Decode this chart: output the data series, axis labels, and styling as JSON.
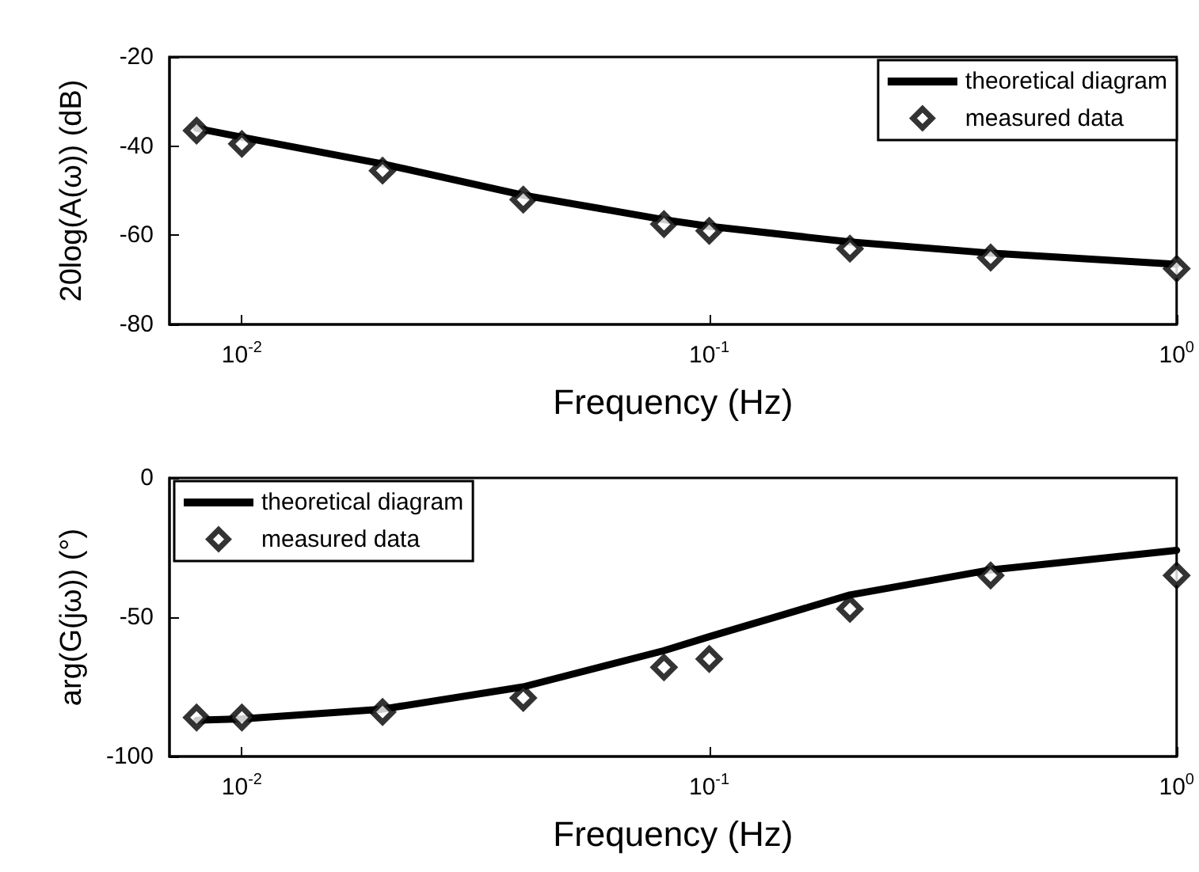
{
  "chart_data": [
    {
      "type": "line",
      "xlabel": "Frequency (Hz)",
      "ylabel": "20log(A(ω)) (dB)",
      "x": [
        0.008,
        0.01,
        0.02,
        0.04,
        0.08,
        0.1,
        0.2,
        0.4,
        1
      ],
      "xlim": [
        0.007,
        1
      ],
      "xticks": [
        {
          "value": 0.01,
          "label": "10$^{-2}$"
        },
        {
          "value": 0.1,
          "label": "10$^{-1}$"
        },
        {
          "value": 1,
          "label": "10$^{0}$"
        }
      ],
      "ylim": [
        -80,
        -20
      ],
      "yticks": [
        -80,
        -60,
        -40,
        -20
      ],
      "log": "x",
      "grid": false,
      "legend": "top right",
      "series": [
        {
          "name": "measured data",
          "type": "scatter",
          "marker": "diamond",
          "color": "#000000",
          "values": [
            -36.5,
            -39.5,
            -45.5,
            -52,
            -57.5,
            -59,
            -63,
            -65,
            -67.5
          ]
        },
        {
          "name": "theoretical diagram",
          "type": "line",
          "marker": "none",
          "color": "#000000",
          "values": [
            -36,
            -38,
            -44,
            -51,
            -56.5,
            -58,
            -61.5,
            -64,
            -66.5
          ]
        }
      ]
    },
    {
      "type": "line",
      "xlabel": "Frequency (Hz)",
      "ylabel": "arg(G(jω)) (°)",
      "x": [
        0.008,
        0.01,
        0.02,
        0.04,
        0.08,
        0.1,
        0.2,
        0.4,
        1
      ],
      "xlim": [
        0.007,
        1
      ],
      "xticks": [
        {
          "value": 0.01,
          "label": "10$^{-2}$"
        },
        {
          "value": 0.1,
          "label": "10$^{-1}$"
        },
        {
          "value": 1,
          "label": "10$^{0}$"
        }
      ],
      "ylim": [
        -100,
        0
      ],
      "yticks": [
        -100,
        -50,
        0
      ],
      "log": "x",
      "grid": false,
      "legend": "top left",
      "series": [
        {
          "name": "measured data",
          "type": "scatter",
          "marker": "diamond",
          "color": "#000000",
          "values": [
            -86,
            -86,
            -84,
            -79,
            -68,
            -65,
            -47,
            -35,
            -35
          ]
        },
        {
          "name": "theoretical diagram",
          "type": "line",
          "marker": "none",
          "color": "#000000",
          "values": [
            -87,
            -86.5,
            -83,
            -75,
            -62,
            -57,
            -42,
            -33,
            -26
          ]
        }
      ]
    }
  ]
}
